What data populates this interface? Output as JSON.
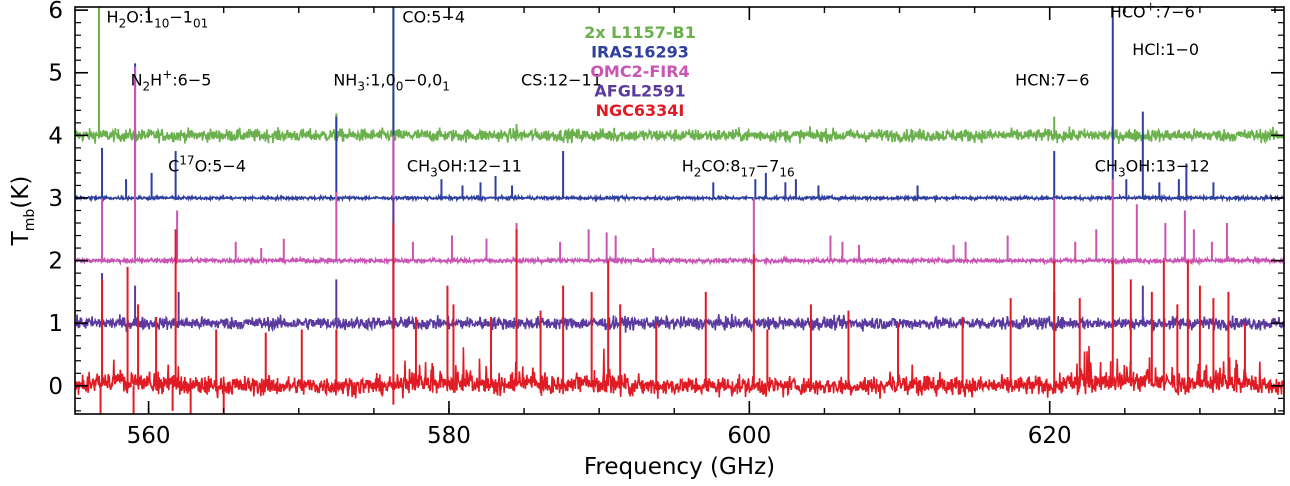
{
  "chart_data": {
    "type": "line",
    "xlabel": "Frequency (GHz)",
    "ylabel_main": "T",
    "ylabel_sub": "mb",
    "ylabel_unit": "(K)",
    "xlim": [
      555.1,
      635.6
    ],
    "ylim": [
      -0.45,
      6.05
    ],
    "xticks": [
      560,
      580,
      600,
      620
    ],
    "xtick_labels": [
      "560",
      "580",
      "600",
      "620"
    ],
    "xminor_step": 5,
    "yticks": [
      0,
      1,
      2,
      3,
      4,
      5,
      6
    ],
    "ytick_labels": [
      "0",
      "1",
      "2",
      "3",
      "4",
      "5",
      "6"
    ],
    "legend": {
      "placement": "top-center",
      "entries": [
        {
          "label": "2x  L1157-B1",
          "color": "#6ab04c"
        },
        {
          "label": "IRAS16293",
          "color": "#2e3f9e"
        },
        {
          "label": "OMC2-FIR4",
          "color": "#c855b3"
        },
        {
          "label": "AFGL2591",
          "color": "#5a3a9e"
        },
        {
          "label": "NGC6334I",
          "color": "#e01b24"
        }
      ]
    },
    "series": [
      {
        "name": "2x L1157-B1",
        "color": "#6ab04c",
        "baseline": 4.0,
        "noise": 0.06,
        "lines": [
          [
            556.7,
            6.05
          ],
          [
            576.3,
            6.05
          ],
          [
            572.5,
            4.35
          ],
          [
            584.5,
            4.18
          ],
          [
            620.3,
            4.3
          ],
          [
            591.0,
            4.12
          ]
        ]
      },
      {
        "name": "IRAS16293",
        "color": "#2e3f9e",
        "baseline": 3.0,
        "noise": 0.015,
        "lines": [
          [
            556.9,
            3.8
          ],
          [
            558.5,
            3.3
          ],
          [
            559.1,
            5.15
          ],
          [
            560.2,
            3.4
          ],
          [
            561.8,
            3.75
          ],
          [
            572.5,
            4.3
          ],
          [
            576.3,
            6.05
          ],
          [
            579.5,
            3.3
          ],
          [
            580.9,
            3.2
          ],
          [
            582.1,
            3.25
          ],
          [
            583.1,
            3.35
          ],
          [
            584.2,
            3.2
          ],
          [
            587.6,
            3.75
          ],
          [
            597.6,
            3.25
          ],
          [
            600.4,
            3.3
          ],
          [
            601.1,
            3.4
          ],
          [
            602.4,
            3.25
          ],
          [
            603.1,
            3.3
          ],
          [
            604.6,
            3.2
          ],
          [
            611.2,
            3.2
          ],
          [
            620.3,
            3.75
          ],
          [
            624.2,
            6.05
          ],
          [
            625.1,
            3.3
          ],
          [
            626.2,
            4.38
          ],
          [
            627.3,
            3.25
          ],
          [
            628.6,
            3.3
          ],
          [
            629.1,
            3.55
          ],
          [
            630.9,
            3.25
          ]
        ]
      },
      {
        "name": "OMC2-FIR4",
        "color": "#c855b3",
        "baseline": 2.0,
        "noise": 0.02,
        "lines": [
          [
            556.9,
            3.0
          ],
          [
            559.1,
            5.1
          ],
          [
            561.9,
            2.8
          ],
          [
            565.8,
            2.3
          ],
          [
            567.5,
            2.2
          ],
          [
            569.0,
            2.35
          ],
          [
            572.5,
            3.1
          ],
          [
            576.3,
            4.0
          ],
          [
            577.6,
            2.3
          ],
          [
            580.2,
            2.4
          ],
          [
            582.5,
            2.35
          ],
          [
            584.5,
            2.6
          ],
          [
            587.4,
            2.3
          ],
          [
            589.3,
            2.5
          ],
          [
            590.5,
            2.45
          ],
          [
            591.1,
            2.4
          ],
          [
            593.6,
            2.2
          ],
          [
            600.3,
            3.0
          ],
          [
            605.4,
            2.4
          ],
          [
            606.2,
            2.3
          ],
          [
            607.3,
            2.25
          ],
          [
            613.6,
            2.25
          ],
          [
            614.4,
            2.3
          ],
          [
            617.2,
            2.4
          ],
          [
            620.3,
            3.0
          ],
          [
            621.7,
            2.3
          ],
          [
            623.1,
            2.5
          ],
          [
            624.2,
            3.3
          ],
          [
            625.8,
            2.9
          ],
          [
            627.7,
            2.6
          ],
          [
            629.0,
            2.8
          ],
          [
            629.6,
            2.5
          ],
          [
            630.8,
            2.3
          ],
          [
            631.8,
            2.6
          ]
        ]
      },
      {
        "name": "AFGL2591",
        "color": "#5a3a9e",
        "baseline": 1.0,
        "noise": 0.06,
        "lines": [
          [
            556.9,
            1.8
          ],
          [
            559.1,
            1.6
          ],
          [
            562.0,
            1.5
          ],
          [
            572.5,
            1.7
          ],
          [
            576.3,
            3.0
          ],
          [
            620.3,
            1.5
          ],
          [
            624.2,
            2.0
          ],
          [
            626.2,
            1.6
          ]
        ]
      },
      {
        "name": "NGC6334I",
        "color": "#e01b24",
        "baseline": 0.0,
        "noise": 0.09,
        "lines": [
          [
            556.9,
            1.7
          ],
          [
            558.6,
            1.9
          ],
          [
            559.3,
            1.3
          ],
          [
            560.5,
            1.1
          ],
          [
            561.8,
            2.5
          ],
          [
            564.5,
            0.9
          ],
          [
            567.8,
            0.85
          ],
          [
            570.2,
            0.9
          ],
          [
            572.5,
            0.9
          ],
          [
            576.3,
            2.6
          ],
          [
            577.8,
            1.1
          ],
          [
            579.9,
            1.6
          ],
          [
            580.3,
            1.3
          ],
          [
            582.8,
            1.1
          ],
          [
            584.5,
            2.5
          ],
          [
            586.1,
            1.2
          ],
          [
            587.6,
            1.6
          ],
          [
            589.5,
            1.5
          ],
          [
            590.6,
            2.0
          ],
          [
            591.4,
            1.3
          ],
          [
            593.8,
            1.0
          ],
          [
            597.1,
            1.5
          ],
          [
            600.3,
            2.1
          ],
          [
            601.2,
            0.9
          ],
          [
            604.1,
            1.3
          ],
          [
            606.6,
            1.2
          ],
          [
            609.9,
            1.0
          ],
          [
            614.2,
            1.1
          ],
          [
            617.4,
            1.4
          ],
          [
            620.3,
            2.0
          ],
          [
            622.0,
            1.4
          ],
          [
            624.2,
            2.0
          ],
          [
            625.4,
            1.7
          ],
          [
            626.8,
            1.5
          ],
          [
            627.6,
            2.0
          ],
          [
            628.5,
            1.3
          ],
          [
            629.2,
            2.0
          ],
          [
            630.0,
            1.6
          ],
          [
            630.9,
            1.4
          ],
          [
            631.9,
            1.5
          ],
          [
            633.0,
            1.0
          ]
        ],
        "dips": [
          [
            556.8,
            -0.9
          ],
          [
            559.0,
            -0.5
          ],
          [
            561.6,
            -0.4
          ],
          [
            562.8,
            -0.8
          ],
          [
            565.0,
            -0.6
          ],
          [
            576.3,
            -0.3
          ]
        ],
        "forest_regions": [
          [
            556.0,
            562.0,
            0.55
          ],
          [
            577.0,
            583.0,
            0.6
          ],
          [
            584.0,
            586.0,
            0.4
          ],
          [
            588.0,
            592.0,
            0.5
          ],
          [
            609.0,
            613.0,
            0.3
          ],
          [
            621.0,
            634.0,
            0.7
          ]
        ]
      }
    ],
    "annotations": [
      {
        "parts": [
          [
            "H"
          ],
          [
            "2",
            "sub"
          ],
          [
            "O:1"
          ],
          [
            "10",
            "sub"
          ],
          [
            "−1"
          ],
          [
            "01",
            "sub"
          ]
        ],
        "x": 557.2,
        "y": 5.8
      },
      {
        "parts": [
          [
            "CO:5−4"
          ]
        ],
        "x": 576.9,
        "y": 5.8
      },
      {
        "parts": [
          [
            "N"
          ],
          [
            "2",
            "sub"
          ],
          [
            "H"
          ],
          [
            "+",
            "sup"
          ],
          [
            ":6−5"
          ]
        ],
        "x": 558.8,
        "y": 4.8
      },
      {
        "parts": [
          [
            "NH"
          ],
          [
            "3",
            "sub"
          ],
          [
            ":1,0"
          ],
          [
            "0",
            "sub"
          ],
          [
            "−0,0"
          ],
          [
            "1",
            "sub"
          ]
        ],
        "x": 572.3,
        "y": 4.8
      },
      {
        "parts": [
          [
            "CS:12−11"
          ]
        ],
        "x": 584.8,
        "y": 4.8
      },
      {
        "parts": [
          [
            "HCN:7−6"
          ]
        ],
        "x": 617.7,
        "y": 4.8
      },
      {
        "parts": [
          [
            "HCO"
          ],
          [
            "+",
            "sup"
          ],
          [
            ":7−6"
          ]
        ],
        "x": 624.0,
        "y": 5.88
      },
      {
        "parts": [
          [
            "HCl:1−0"
          ]
        ],
        "x": 625.5,
        "y": 5.28
      },
      {
        "parts": [
          [
            "C"
          ],
          [
            "17",
            "sup"
          ],
          [
            "O:5−4"
          ]
        ],
        "x": 561.3,
        "y": 3.42
      },
      {
        "parts": [
          [
            "CH"
          ],
          [
            "3",
            "sub"
          ],
          [
            "OH:12−11"
          ]
        ],
        "x": 577.2,
        "y": 3.42
      },
      {
        "parts": [
          [
            "H"
          ],
          [
            "2",
            "sub"
          ],
          [
            "CO:8"
          ],
          [
            "17",
            "sub"
          ],
          [
            "−7"
          ],
          [
            "16",
            "sub"
          ]
        ],
        "x": 595.5,
        "y": 3.42
      },
      {
        "parts": [
          [
            "CH"
          ],
          [
            "3",
            "sub"
          ],
          [
            "OH:13−12"
          ]
        ],
        "x": 623.0,
        "y": 3.42
      }
    ]
  }
}
